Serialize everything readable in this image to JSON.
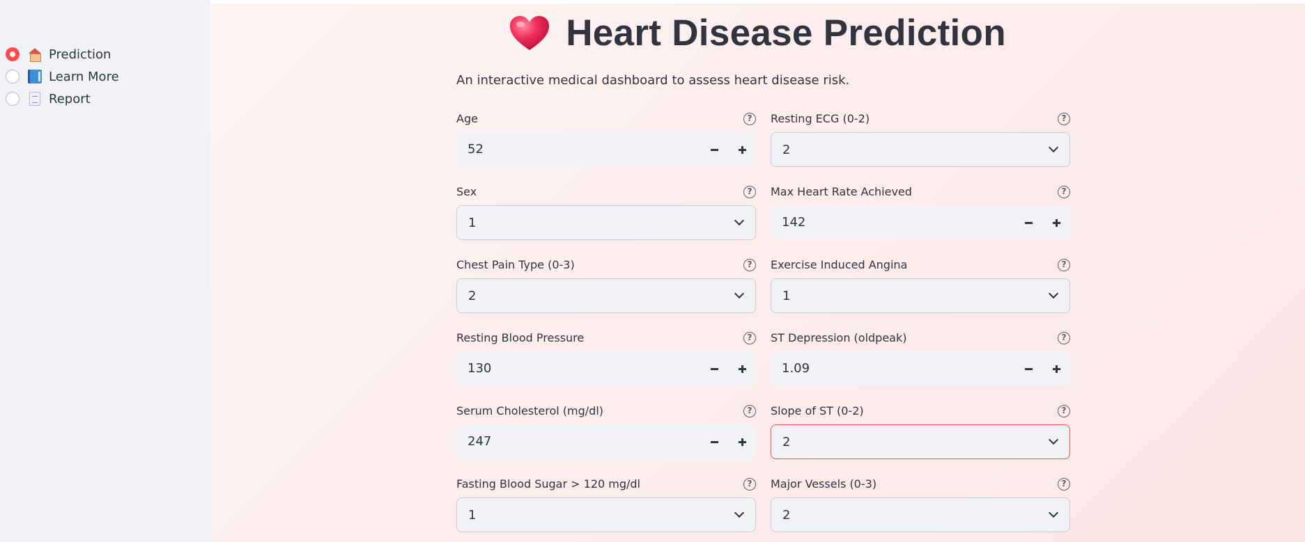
{
  "sidebar": {
    "items": [
      {
        "label": "Prediction",
        "icon": "house-icon",
        "selected": true
      },
      {
        "label": "Learn More",
        "icon": "book-icon",
        "selected": false
      },
      {
        "label": "Report",
        "icon": "page-icon",
        "selected": false
      }
    ]
  },
  "header": {
    "title": "Heart Disease Prediction",
    "icon": "heart-icon",
    "subtitle": "An interactive medical dashboard to assess heart disease risk."
  },
  "colors": {
    "accent": "#ff4b4b",
    "sidebar_bg": "#f0f2f6",
    "input_bg": "#f0f2f6",
    "text": "#31333f"
  },
  "form": {
    "left": [
      {
        "label": "Age",
        "type": "number",
        "value": "52"
      },
      {
        "label": "Sex",
        "type": "select",
        "value": "1"
      },
      {
        "label": "Chest Pain Type (0-3)",
        "type": "select",
        "value": "2"
      },
      {
        "label": "Resting Blood Pressure",
        "type": "number",
        "value": "130"
      },
      {
        "label": "Serum Cholesterol (mg/dl)",
        "type": "number",
        "value": "247"
      },
      {
        "label": "Fasting Blood Sugar > 120 mg/dl",
        "type": "select",
        "value": "1"
      }
    ],
    "right": [
      {
        "label": "Resting ECG (0-2)",
        "type": "select",
        "value": "2"
      },
      {
        "label": "Max Heart Rate Achieved",
        "type": "number",
        "value": "142"
      },
      {
        "label": "Exercise Induced Angina",
        "type": "select",
        "value": "1"
      },
      {
        "label": "ST Depression (oldpeak)",
        "type": "number",
        "value": "1.09"
      },
      {
        "label": "Slope of ST (0-2)",
        "type": "select",
        "value": "2",
        "focused": true
      },
      {
        "label": "Major Vessels (0-3)",
        "type": "select",
        "value": "2"
      }
    ],
    "help_glyph": "?"
  }
}
